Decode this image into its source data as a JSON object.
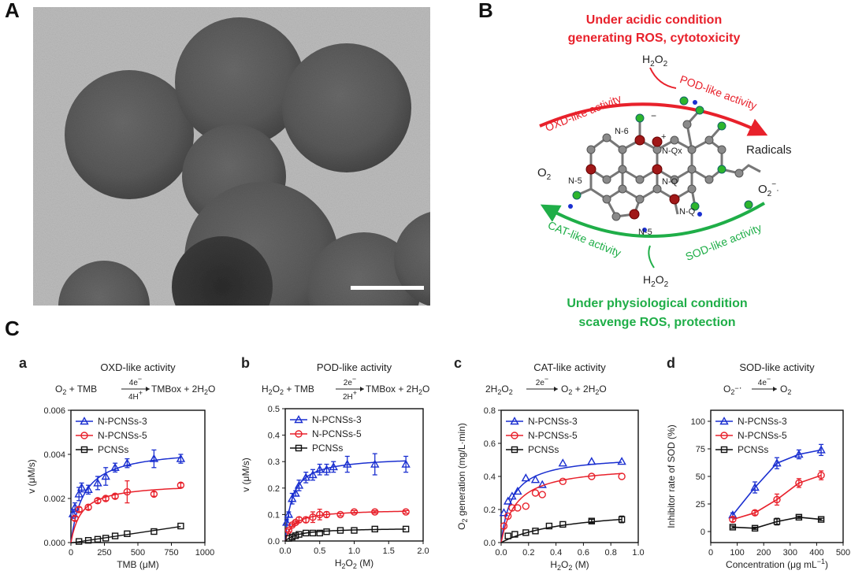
{
  "panels": {
    "A": "A",
    "B": "B",
    "C": "C"
  },
  "scheme": {
    "top_title_1": "Under acidic condition",
    "top_title_2": "generating ROS, cytotoxicity",
    "bottom_title_1": "Under physiological  condition",
    "bottom_title_2": "scavenge ROS, protection",
    "h2o2": "H",
    "oxd": "OXD-like activity",
    "pod": "POD-like activity",
    "cat": "CAT-like activity",
    "sod": "SOD-like activity",
    "radicals": "Radicals",
    "n6": "N-6",
    "n5": "N-5",
    "nq": "N-Q",
    "nqx": "N-Qx",
    "colors": {
      "red": "#e8212b",
      "green": "#1fae48",
      "blue": "#1a2fd0"
    }
  },
  "chart_data": [
    {
      "id": "a",
      "type": "scatter",
      "letter": "a",
      "title": "OXD-like activity",
      "equation": {
        "lhs": "O",
        "above": "4e",
        "below": "4H",
        "rhs": "TMBox + 2H"
      },
      "xlabel": "TMB (μM)",
      "ylabel": "v (μM/s)",
      "xlim": [
        0,
        1000
      ],
      "ylim": [
        0,
        0.006
      ],
      "xticks": [
        0,
        250,
        500,
        750,
        1000
      ],
      "yticks": [
        0.0,
        0.002,
        0.004,
        0.006
      ],
      "ytick_labels": [
        "0.000",
        "0.002",
        "0.004",
        "0.006"
      ],
      "legend": "top-left",
      "series": [
        {
          "name": "N-PCNSs-3",
          "color": "#1a2fd0",
          "marker": "triangle",
          "x": [
            15,
            30,
            60,
            80,
            130,
            200,
            260,
            330,
            420,
            620,
            820
          ],
          "y": [
            0.0013,
            0.0016,
            0.0022,
            0.0025,
            0.0024,
            0.0027,
            0.003,
            0.0034,
            0.0036,
            0.0038,
            0.0038
          ],
          "err": [
            0.0002,
            0.0002,
            0.0003,
            0.0002,
            0.0002,
            0.0003,
            0.0004,
            0.0002,
            0.0002,
            0.0004,
            0.0002
          ],
          "fit_vmax": 0.0043,
          "fit_km": 95
        },
        {
          "name": "N-PCNSs-5",
          "color": "#e8212b",
          "marker": "circle",
          "x": [
            30,
            60,
            130,
            200,
            260,
            330,
            420,
            620,
            820
          ],
          "y": [
            0.0011,
            0.0015,
            0.0016,
            0.0019,
            0.002,
            0.0021,
            0.0023,
            0.0022,
            0.0026
          ],
          "err": [
            0.0001,
            0.0001,
            0.0001,
            0.0001,
            0.0001,
            0.0001,
            0.0005,
            0.0001,
            0.0001
          ],
          "fit_vmax": 0.0027,
          "fit_km": 80
        },
        {
          "name": "PCNSs",
          "color": "#111111",
          "marker": "square",
          "x": [
            60,
            130,
            200,
            260,
            330,
            420,
            620,
            820
          ],
          "y": [
            5e-05,
            0.0001,
            0.00015,
            0.0002,
            0.0003,
            0.0004,
            0.0005,
            0.00075
          ],
          "linear": true
        }
      ]
    },
    {
      "id": "b",
      "type": "scatter",
      "letter": "b",
      "title": "POD-like activity",
      "equation": {
        "lhs": "H",
        "above": "2e",
        "below": "2H",
        "rhs": "TMBox + 2H"
      },
      "xlabel": "H",
      "ylabel": "v (μM/s)",
      "xlim": [
        0,
        2.0
      ],
      "ylim": [
        0,
        0.5
      ],
      "xticks": [
        0.0,
        0.5,
        1.0,
        1.5,
        2.0
      ],
      "xtick_labels": [
        "0.0",
        "0.5",
        "1.0",
        "1.5",
        "2.0"
      ],
      "yticks": [
        0.0,
        0.1,
        0.2,
        0.3,
        0.4,
        0.5
      ],
      "ytick_labels": [
        "0.0",
        "0.1",
        "0.2",
        "0.3",
        "0.4",
        "0.5"
      ],
      "legend": "top-left",
      "series": [
        {
          "name": "N-PCNSs-3",
          "color": "#1a2fd0",
          "marker": "triangle",
          "x": [
            0.02,
            0.05,
            0.1,
            0.15,
            0.2,
            0.3,
            0.4,
            0.5,
            0.6,
            0.7,
            0.9,
            1.3,
            1.75
          ],
          "y": [
            0.07,
            0.1,
            0.16,
            0.18,
            0.21,
            0.24,
            0.25,
            0.27,
            0.27,
            0.28,
            0.29,
            0.29,
            0.29
          ],
          "err": [
            0.01,
            0.01,
            0.02,
            0.01,
            0.02,
            0.02,
            0.02,
            0.02,
            0.02,
            0.02,
            0.03,
            0.04,
            0.03
          ],
          "fit_vmax": 0.32,
          "fit_km": 0.1
        },
        {
          "name": "N-PCNSs-5",
          "color": "#e8212b",
          "marker": "circle",
          "x": [
            0.05,
            0.1,
            0.15,
            0.2,
            0.3,
            0.4,
            0.5,
            0.6,
            0.8,
            1.0,
            1.3,
            1.75
          ],
          "y": [
            0.04,
            0.06,
            0.07,
            0.08,
            0.08,
            0.09,
            0.1,
            0.1,
            0.1,
            0.11,
            0.11,
            0.11
          ],
          "err": [
            0.005,
            0.005,
            0.005,
            0.01,
            0.01,
            0.02,
            0.02,
            0.01,
            0.005,
            0.005,
            0.005,
            0.005
          ],
          "fit_vmax": 0.12,
          "fit_km": 0.12
        },
        {
          "name": "PCNSs",
          "color": "#111111",
          "marker": "square",
          "x": [
            0.05,
            0.1,
            0.15,
            0.2,
            0.3,
            0.4,
            0.5,
            0.6,
            0.8,
            1.0,
            1.3,
            1.75
          ],
          "y": [
            0.01,
            0.015,
            0.02,
            0.025,
            0.03,
            0.03,
            0.03,
            0.035,
            0.04,
            0.04,
            0.045,
            0.045
          ],
          "fit_vmax": 0.05,
          "fit_km": 0.2
        }
      ]
    },
    {
      "id": "c",
      "type": "scatter",
      "letter": "c",
      "title": "CAT-like activity",
      "equation": {
        "lhs": "2H",
        "above": "2e",
        "below": "",
        "rhs": "O"
      },
      "xlabel": "H",
      "ylabel": "O",
      "xlim": [
        0,
        1.0
      ],
      "ylim": [
        0,
        0.8
      ],
      "xticks": [
        0.0,
        0.2,
        0.4,
        0.6,
        0.8,
        1.0
      ],
      "xtick_labels": [
        "0.0",
        "0.2",
        "0.4",
        "0.6",
        "0.8",
        "1.0"
      ],
      "yticks": [
        0.0,
        0.2,
        0.4,
        0.6,
        0.8
      ],
      "ytick_labels": [
        "0.0",
        "0.2",
        "0.4",
        "0.6",
        "0.8"
      ],
      "legend": "top-left",
      "series": [
        {
          "name": "N-PCNSs-3",
          "color": "#1a2fd0",
          "marker": "triangle",
          "x": [
            0.02,
            0.05,
            0.08,
            0.12,
            0.18,
            0.25,
            0.3,
            0.45,
            0.66,
            0.88
          ],
          "y": [
            0.18,
            0.25,
            0.28,
            0.31,
            0.39,
            0.38,
            0.35,
            0.48,
            0.49,
            0.49
          ],
          "fit_vmax": 0.53,
          "fit_km": 0.08
        },
        {
          "name": "N-PCNSs-5",
          "color": "#e8212b",
          "marker": "circle",
          "x": [
            0.02,
            0.05,
            0.08,
            0.12,
            0.18,
            0.25,
            0.3,
            0.45,
            0.66,
            0.88
          ],
          "y": [
            0.1,
            0.16,
            0.21,
            0.21,
            0.22,
            0.3,
            0.29,
            0.37,
            0.4,
            0.4
          ],
          "fit_vmax": 0.47,
          "fit_km": 0.11
        },
        {
          "name": "PCNSs",
          "color": "#111111",
          "marker": "square",
          "x": [
            0.05,
            0.1,
            0.18,
            0.25,
            0.35,
            0.45,
            0.66,
            0.88
          ],
          "y": [
            0.04,
            0.05,
            0.06,
            0.07,
            0.1,
            0.11,
            0.13,
            0.14
          ],
          "err": [
            0,
            0,
            0,
            0,
            0,
            0,
            0.01,
            0.02
          ],
          "fit_vmax": 0.22,
          "fit_km": 0.5
        }
      ]
    },
    {
      "id": "d",
      "type": "line",
      "letter": "d",
      "title": "SOD-like activity",
      "equation": {
        "lhs": "O",
        "above": "4e",
        "below": "",
        "rhs": "O"
      },
      "xlabel": "Concentration (μg mL",
      "ylabel": "Inhibitor rate of SOD (%)",
      "xlim": [
        0,
        500
      ],
      "ylim": [
        -10,
        110
      ],
      "xticks": [
        0,
        100,
        200,
        300,
        400,
        500
      ],
      "yticks": [
        0,
        25,
        50,
        75,
        100
      ],
      "legend": "top-left",
      "series": [
        {
          "name": "N-PCNSs-3",
          "color": "#1a2fd0",
          "marker": "triangle",
          "x": [
            83,
            167,
            250,
            333,
            417
          ],
          "y": [
            15,
            40,
            62,
            70,
            74
          ],
          "err": [
            2,
            5,
            5,
            4,
            5
          ]
        },
        {
          "name": "N-PCNSs-5",
          "color": "#e8212b",
          "marker": "circle",
          "x": [
            83,
            167,
            250,
            333,
            417
          ],
          "y": [
            11,
            17,
            29,
            44,
            51
          ],
          "err": [
            2,
            2,
            5,
            4,
            4
          ]
        },
        {
          "name": "PCNSs",
          "color": "#111111",
          "marker": "square",
          "x": [
            83,
            167,
            250,
            333,
            417
          ],
          "y": [
            4,
            3,
            9,
            13,
            11
          ],
          "err": [
            1,
            1,
            3,
            1,
            1
          ]
        }
      ]
    }
  ]
}
